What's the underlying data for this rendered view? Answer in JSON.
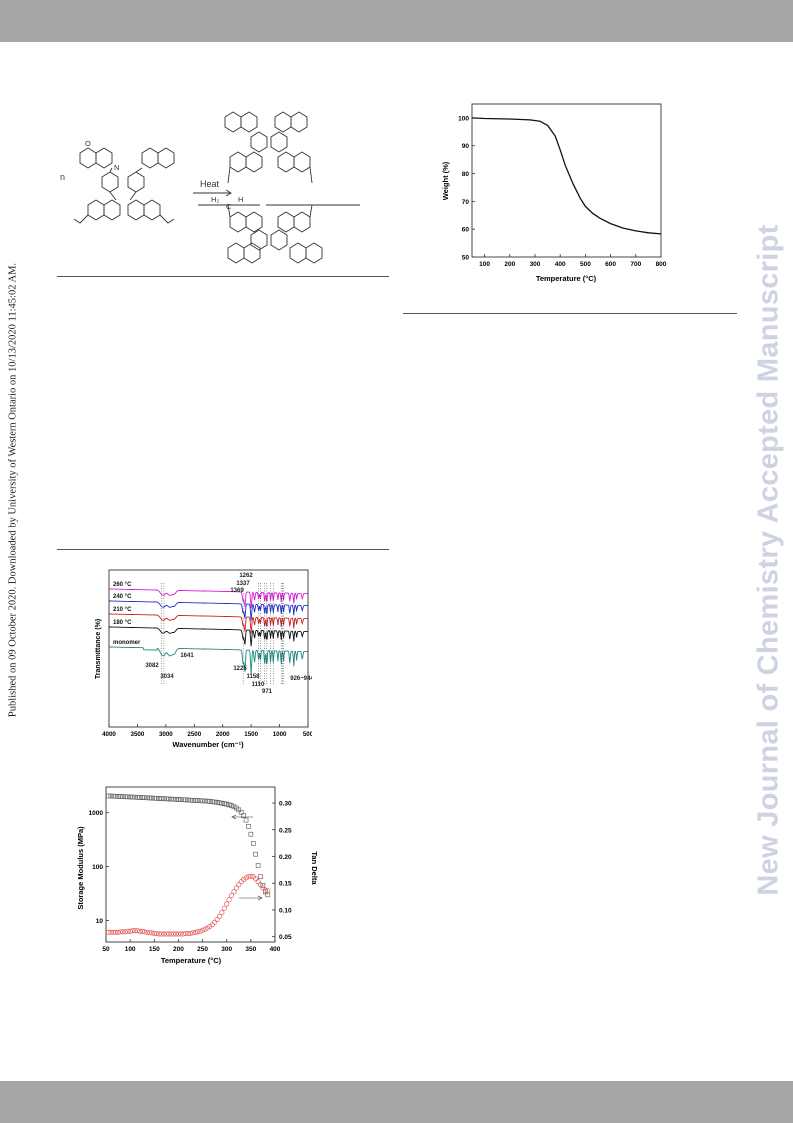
{
  "page": {
    "side_note": "Published on 09 October 2020. Downloaded by University of Western Ontario on 10/13/2020 11:45:02 AM.",
    "watermark": "New Journal of Chemistry Accepted Manuscript",
    "colors": {
      "header_bar": "#a6a6a6",
      "watermark": "#cdd3e1"
    }
  },
  "scheme": {
    "n_label": "n",
    "arrow_label": "Heat",
    "ring_o": "O",
    "ring_n": "N",
    "chain_h2": "H₂",
    "chain_h": "H",
    "chain_c": "C"
  },
  "chart_data": [
    {
      "id": "tga",
      "type": "line",
      "xlabel": "Temperature (°C)",
      "ylabel": "Weight (%)",
      "xlim": [
        50,
        800
      ],
      "ylim": [
        50,
        105
      ],
      "xticks": [
        100,
        200,
        300,
        400,
        500,
        600,
        700,
        800
      ],
      "yticks": [
        50,
        60,
        70,
        80,
        90,
        100
      ],
      "series": [
        {
          "color": "#111111",
          "x": [
            50,
            100,
            200,
            280,
            320,
            350,
            380,
            400,
            420,
            450,
            480,
            500,
            530,
            560,
            600,
            650,
            700,
            750,
            800
          ],
          "y": [
            100,
            99.8,
            99.6,
            99.3,
            98.8,
            97.3,
            93.5,
            88.5,
            83,
            76.5,
            71,
            68.2,
            65.6,
            63.8,
            62,
            60.4,
            59.4,
            58.7,
            58.3
          ]
        }
      ]
    },
    {
      "id": "ftir",
      "type": "line",
      "xlabel": "Wavenumber (cm⁻¹)",
      "ylabel": "Transmittance (%)",
      "xlim": [
        4000,
        500
      ],
      "xticks": [
        4000,
        3500,
        3000,
        2500,
        2000,
        1500,
        1000,
        500
      ],
      "series": [
        {
          "name": "260 °C",
          "color": "#d81bd8",
          "offset": 0
        },
        {
          "name": "240 °C",
          "color": "#1f2ecc",
          "offset": 1
        },
        {
          "name": "210 °C",
          "color": "#cc2222",
          "offset": 2
        },
        {
          "name": "180 °C",
          "color": "#111111",
          "offset": 3
        },
        {
          "name": "monomer",
          "color": "#1e8a80",
          "offset": 4
        }
      ],
      "annotations_top": [
        "1262",
        "1337",
        "1369"
      ],
      "annotations_bottom": [
        "3082",
        "3034",
        "1641",
        "1225",
        "1158",
        "1110",
        "971",
        "926~944"
      ]
    },
    {
      "id": "dma",
      "type": "scatter",
      "xlabel": "Temperature (°C)",
      "ylabel": "Storage Modulus (MPa)",
      "y2label": "Tan Delta",
      "xlim": [
        50,
        400
      ],
      "xticks": [
        50,
        100,
        150,
        200,
        250,
        300,
        350,
        400
      ],
      "y_log": true,
      "ylim": [
        4,
        3000
      ],
      "yticks": [
        {
          "v": 1000,
          "label": "1000"
        },
        {
          "v": 100,
          "label": "100"
        },
        {
          "v": 10,
          "label": "10"
        }
      ],
      "y2lim": [
        0.04,
        0.33
      ],
      "y2ticks": [
        "0.05",
        "0.10",
        "0.15",
        "0.20",
        "0.25",
        "0.30"
      ],
      "series": [
        {
          "name": "Storage Modulus",
          "color": "#555555",
          "axis": "left",
          "x": [
            55,
            60,
            65,
            70,
            75,
            80,
            85,
            90,
            95,
            100,
            105,
            110,
            115,
            120,
            125,
            130,
            135,
            140,
            145,
            150,
            155,
            160,
            165,
            170,
            175,
            180,
            185,
            190,
            195,
            200,
            205,
            210,
            215,
            220,
            225,
            230,
            235,
            240,
            245,
            250,
            255,
            260,
            265,
            270,
            275,
            280,
            285,
            290,
            295,
            300,
            305,
            310,
            315,
            320,
            325,
            330,
            335,
            340,
            345,
            350,
            355,
            360,
            365,
            370,
            375,
            380,
            385
          ],
          "y": [
            2050,
            2040,
            2030,
            2020,
            2010,
            2000,
            1990,
            1980,
            1970,
            1960,
            1950,
            1940,
            1930,
            1920,
            1910,
            1900,
            1890,
            1880,
            1870,
            1860,
            1850,
            1840,
            1830,
            1820,
            1810,
            1800,
            1790,
            1780,
            1770,
            1760,
            1750,
            1740,
            1730,
            1720,
            1710,
            1700,
            1690,
            1680,
            1670,
            1660,
            1650,
            1640,
            1620,
            1600,
            1580,
            1560,
            1530,
            1500,
            1470,
            1440,
            1400,
            1350,
            1290,
            1220,
            1130,
            1020,
            880,
            730,
            560,
            400,
            270,
            170,
            105,
            65,
            45,
            34,
            30
          ]
        },
        {
          "name": "Tan Delta",
          "color": "#e04848",
          "axis": "right",
          "x": [
            55,
            60,
            65,
            70,
            75,
            80,
            85,
            90,
            95,
            100,
            105,
            110,
            115,
            120,
            125,
            130,
            135,
            140,
            145,
            150,
            155,
            160,
            165,
            170,
            175,
            180,
            185,
            190,
            195,
            200,
            205,
            210,
            215,
            220,
            225,
            230,
            235,
            240,
            245,
            250,
            255,
            260,
            265,
            270,
            275,
            280,
            285,
            290,
            295,
            300,
            305,
            310,
            315,
            320,
            325,
            330,
            335,
            340,
            345,
            350,
            355,
            360,
            365,
            370,
            375,
            380,
            385
          ],
          "y": [
            0.058,
            0.058,
            0.058,
            0.058,
            0.058,
            0.059,
            0.059,
            0.059,
            0.06,
            0.06,
            0.061,
            0.061,
            0.061,
            0.06,
            0.06,
            0.059,
            0.058,
            0.057,
            0.057,
            0.056,
            0.056,
            0.055,
            0.055,
            0.055,
            0.055,
            0.055,
            0.055,
            0.055,
            0.055,
            0.055,
            0.055,
            0.055,
            0.056,
            0.056,
            0.056,
            0.057,
            0.058,
            0.059,
            0.06,
            0.062,
            0.064,
            0.066,
            0.069,
            0.072,
            0.077,
            0.082,
            0.088,
            0.095,
            0.103,
            0.111,
            0.119,
            0.127,
            0.134,
            0.141,
            0.147,
            0.153,
            0.157,
            0.16,
            0.162,
            0.163,
            0.162,
            0.158,
            0.153,
            0.147,
            0.141,
            0.137,
            0.136
          ]
        }
      ]
    }
  ]
}
